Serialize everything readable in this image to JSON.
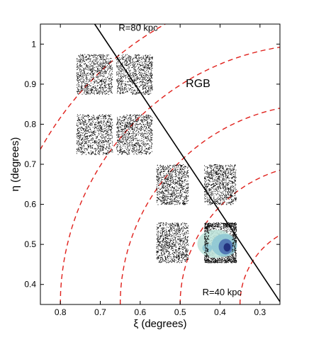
{
  "chart_data": {
    "type": "scatter",
    "title": "",
    "xlabel": "ξ (degrees)",
    "ylabel": "η (degrees)",
    "xlim": [
      0.85,
      0.25
    ],
    "ylim": [
      0.35,
      1.05
    ],
    "x_reversed": true,
    "grid": false,
    "xticks": [
      0.8,
      0.7,
      0.6,
      0.5,
      0.4,
      0.3
    ],
    "xtick_labels": [
      "0.8",
      "0.7",
      "0.6",
      "0.5",
      "0.4",
      "0.3"
    ],
    "yticks": [
      0.4,
      0.5,
      0.6,
      0.7,
      0.8,
      0.9,
      1.0
    ],
    "ytick_labels": [
      "0.4",
      "0.5",
      "0.6",
      "0.7",
      "0.8",
      "0.9",
      "1"
    ],
    "fields": [
      {
        "x_range": [
          0.76,
          0.67
        ],
        "y_range": [
          0.875,
          0.975
        ]
      },
      {
        "x_range": [
          0.66,
          0.57
        ],
        "y_range": [
          0.875,
          0.975
        ]
      },
      {
        "x_range": [
          0.76,
          0.67
        ],
        "y_range": [
          0.725,
          0.825
        ]
      },
      {
        "x_range": [
          0.66,
          0.57
        ],
        "y_range": [
          0.725,
          0.825
        ]
      },
      {
        "x_range": [
          0.56,
          0.48
        ],
        "y_range": [
          0.6,
          0.7
        ]
      },
      {
        "x_range": [
          0.44,
          0.36
        ],
        "y_range": [
          0.6,
          0.7
        ]
      },
      {
        "x_range": [
          0.56,
          0.48
        ],
        "y_range": [
          0.455,
          0.555
        ]
      },
      {
        "x_range": [
          0.44,
          0.36
        ],
        "y_range": [
          0.455,
          0.555
        ]
      }
    ],
    "line": {
      "points": [
        [
          0.714,
          1.05
        ],
        [
          0.25,
          0.357
        ]
      ],
      "color": "#000000"
    },
    "radius_arcs": {
      "center": [
        0.15,
        0.35
      ],
      "radii": [
        0.2,
        0.35,
        0.5,
        0.65,
        0.8
      ],
      "color": "#e0201b",
      "style": "dashed"
    },
    "density_map": {
      "x_range": [
        0.44,
        0.36
      ],
      "y_range": [
        0.455,
        0.555
      ],
      "colors": [
        "#bfe4dc",
        "#8fc8d4",
        "#4a6fb0",
        "#1e2a78"
      ]
    },
    "annotations": [
      {
        "text": "R=80 kpc",
        "x": 0.605,
        "y": 1.04
      },
      {
        "text": "RGB",
        "x": 0.455,
        "y": 0.9
      },
      {
        "text": "R=40 kpc",
        "x": 0.395,
        "y": 0.38
      }
    ]
  }
}
